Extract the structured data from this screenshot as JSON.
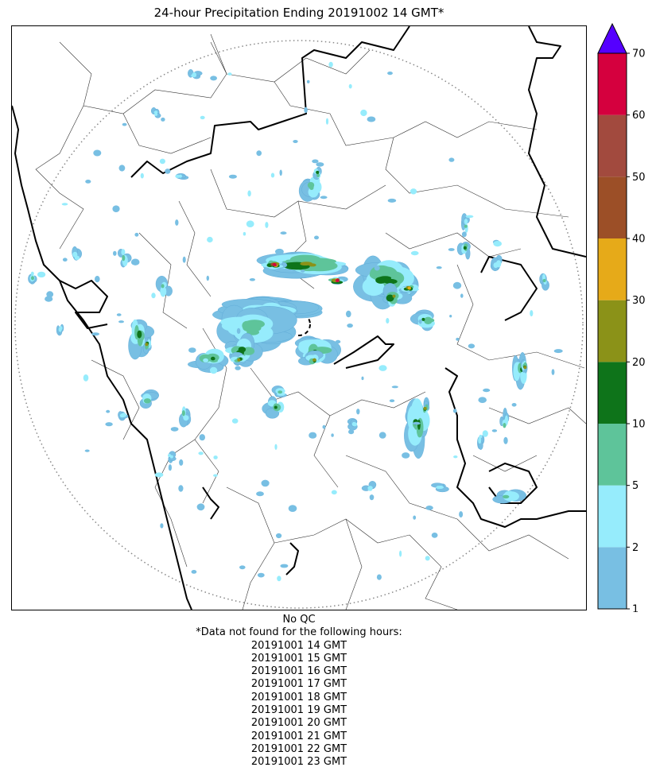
{
  "title": "24-hour Precipitation Ending 20191002 14 GMT*",
  "colorbar": {
    "ticks": [
      "1",
      "2",
      "5",
      "10",
      "20",
      "30",
      "40",
      "50",
      "60",
      "70"
    ],
    "colors": [
      "#78bfe3",
      "#96ecfc",
      "#5ec49a",
      "#0e741a",
      "#8b9218",
      "#e6aa19",
      "#9c4f27",
      "#a24a3e",
      "#d5003e"
    ],
    "extend_color": "#5500ff"
  },
  "footer": {
    "qc_note": "No QC",
    "missing_note": "*Data not found for the following hours:",
    "missing_hours": [
      "20191001 14 GMT",
      "20191001 15 GMT",
      "20191001 16 GMT",
      "20191001 17 GMT",
      "20191001 18 GMT",
      "20191001 19 GMT",
      "20191001 20 GMT",
      "20191001 21 GMT",
      "20191001 22 GMT",
      "20191001 23 GMT"
    ]
  }
}
